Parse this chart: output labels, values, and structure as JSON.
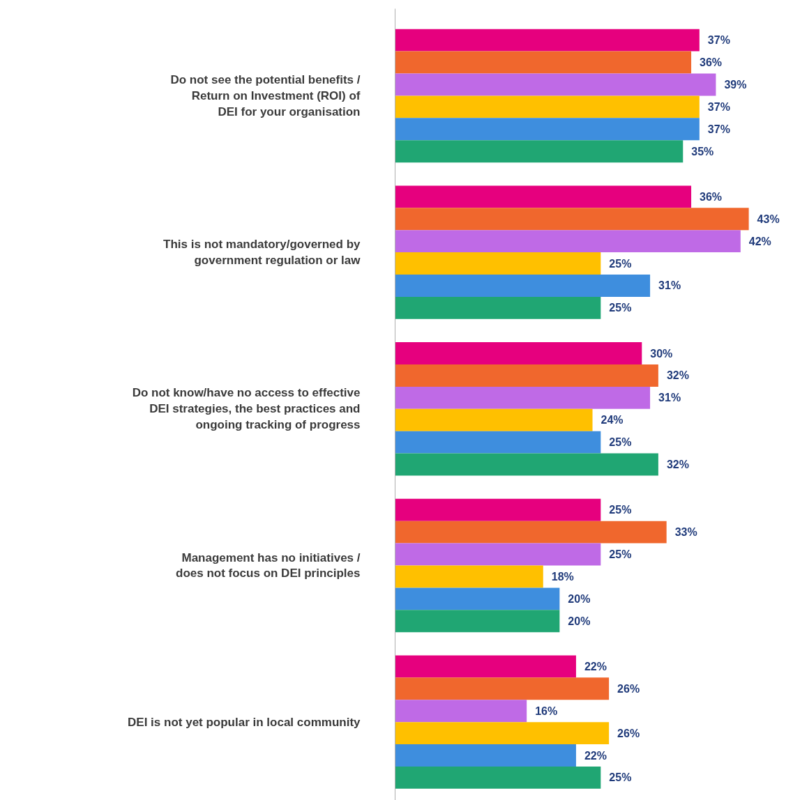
{
  "chart_data": {
    "type": "bar",
    "orientation": "horizontal",
    "categories": [
      "Do not see the potential benefits /\nReturn on Investment (ROI) of\nDEI for your organisation",
      "This is not mandatory/governed by\ngovernment regulation or law",
      "Do not know/have no access to effective\nDEI strategies, the best practices and\nongoing tracking of progress",
      "Management has no initiatives /\ndoes not focus on DEI principles",
      "DEI is not yet popular in local community"
    ],
    "series": [
      {
        "color": "#e6007e",
        "values": [
          37,
          36,
          30,
          25,
          22
        ],
        "value_labels": [
          "37%",
          "36%",
          "30%",
          "25%",
          "22%"
        ]
      },
      {
        "color": "#f0672d",
        "values": [
          36,
          43,
          32,
          33,
          26
        ],
        "value_labels": [
          "36%",
          "43%",
          "32%",
          "33%",
          "26%"
        ]
      },
      {
        "color": "#bf6ae6",
        "values": [
          39,
          42,
          31,
          25,
          16
        ],
        "value_labels": [
          "39%",
          "42%",
          "31%",
          "25%",
          "16%"
        ]
      },
      {
        "color": "#ffc000",
        "values": [
          37,
          25,
          24,
          18,
          26
        ],
        "value_labels": [
          "37%",
          "25%",
          "24%",
          "18%",
          "26%"
        ]
      },
      {
        "color": "#3e8ede",
        "values": [
          37,
          31,
          25,
          20,
          22
        ],
        "value_labels": [
          "37%",
          "31%",
          "25%",
          "20%",
          "22%"
        ]
      },
      {
        "color": "#20a673",
        "values": [
          35,
          25,
          32,
          20,
          25
        ],
        "value_labels": [
          "35%",
          "25%",
          "32%",
          "20%",
          "25%"
        ]
      }
    ]
  }
}
